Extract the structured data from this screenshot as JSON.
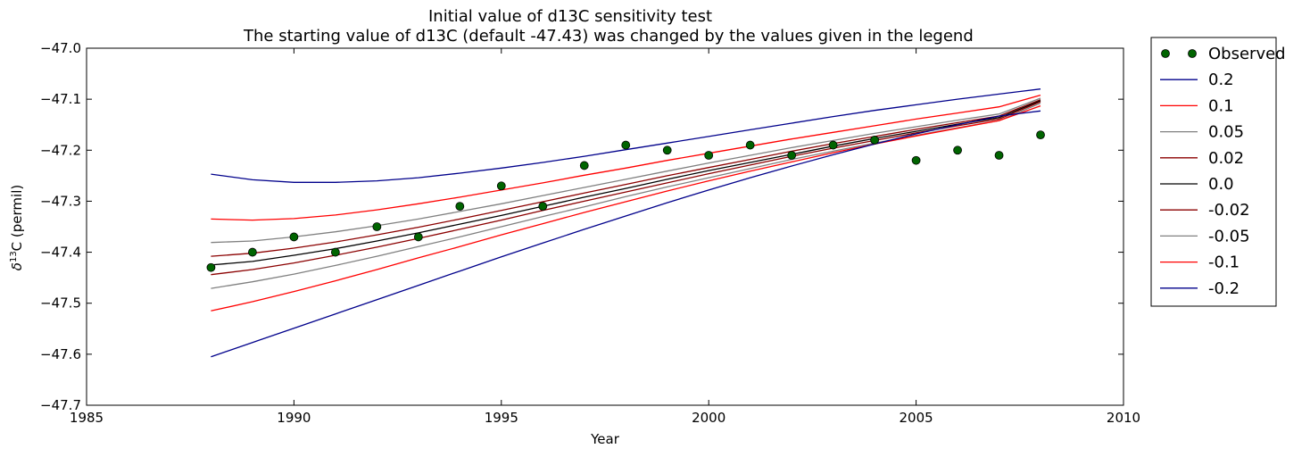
{
  "chart_data": {
    "type": "line",
    "title": "Initial value of d13C sensitivity test",
    "subtitle": "The starting value of d13C (default -47.43) was changed by the values given in the legend",
    "xlabel": "Year",
    "ylabel": "δ13C (permil)",
    "ylabel_parts": {
      "delta": "δ",
      "sup": "13",
      "rest": "C (permil)"
    },
    "xlim": [
      1985,
      2010
    ],
    "ylim": [
      -47.7,
      -47.0
    ],
    "xticks": [
      1985,
      1990,
      1995,
      2000,
      2005,
      2010
    ],
    "xtick_labels": [
      "1985",
      "1990",
      "1995",
      "2000",
      "2005",
      "2010"
    ],
    "yticks": [
      -47.0,
      -47.1,
      -47.2,
      -47.3,
      -47.4,
      -47.5,
      -47.6,
      -47.7
    ],
    "ytick_labels": [
      "−47.0",
      "−47.1",
      "−47.2",
      "−47.3",
      "−47.4",
      "−47.5",
      "−47.6",
      "−47.7"
    ],
    "grid": false,
    "legend_position": "outside-right",
    "x": [
      1988,
      1989,
      1990,
      1991,
      1992,
      1993,
      1994,
      1995,
      1996,
      1997,
      1998,
      1999,
      2000,
      2001,
      2002,
      2003,
      2004,
      2005,
      2006,
      2007,
      2008
    ],
    "observed": {
      "name": "Observed",
      "color": "#006400",
      "values": [
        -47.43,
        -47.4,
        -47.37,
        -47.4,
        -47.35,
        -47.37,
        -47.31,
        -47.27,
        -47.31,
        -47.23,
        -47.19,
        -47.2,
        -47.21,
        -47.19,
        -47.21,
        -47.19,
        -47.18,
        -47.22,
        -47.2,
        -47.21,
        -47.17
      ]
    },
    "series": [
      {
        "name": "0.2",
        "color": "#00008b",
        "values": [
          -47.247,
          -47.258,
          -47.263,
          -47.263,
          -47.26,
          -47.254,
          -47.245,
          -47.235,
          -47.224,
          -47.212,
          -47.199,
          -47.186,
          -47.173,
          -47.16,
          -47.147,
          -47.134,
          -47.122,
          -47.111,
          -47.1,
          -47.09,
          -47.08
        ]
      },
      {
        "name": "0.1",
        "color": "#ff0000",
        "values": [
          -47.335,
          -47.337,
          -47.334,
          -47.327,
          -47.317,
          -47.305,
          -47.292,
          -47.278,
          -47.264,
          -47.249,
          -47.235,
          -47.22,
          -47.206,
          -47.192,
          -47.178,
          -47.165,
          -47.152,
          -47.139,
          -47.127,
          -47.115,
          -47.092
        ]
      },
      {
        "name": "0.05",
        "color": "#808080",
        "values": [
          -47.381,
          -47.378,
          -47.37,
          -47.36,
          -47.348,
          -47.335,
          -47.32,
          -47.305,
          -47.289,
          -47.273,
          -47.257,
          -47.241,
          -47.225,
          -47.21,
          -47.195,
          -47.181,
          -47.167,
          -47.154,
          -47.141,
          -47.129,
          -47.098
        ]
      },
      {
        "name": "0.02",
        "color": "#8b0000",
        "values": [
          -47.408,
          -47.402,
          -47.392,
          -47.38,
          -47.366,
          -47.351,
          -47.335,
          -47.318,
          -47.301,
          -47.284,
          -47.267,
          -47.25,
          -47.234,
          -47.218,
          -47.202,
          -47.187,
          -47.173,
          -47.159,
          -47.146,
          -47.133,
          -47.101
        ]
      },
      {
        "name": "0.0",
        "color": "#000000",
        "values": [
          -47.425,
          -47.418,
          -47.406,
          -47.393,
          -47.378,
          -47.362,
          -47.345,
          -47.328,
          -47.31,
          -47.292,
          -47.275,
          -47.257,
          -47.24,
          -47.224,
          -47.208,
          -47.192,
          -47.177,
          -47.163,
          -47.149,
          -47.136,
          -47.103
        ]
      },
      {
        "name": "-0.02",
        "color": "#8b0000",
        "values": [
          -47.444,
          -47.434,
          -47.421,
          -47.406,
          -47.39,
          -47.373,
          -47.355,
          -47.337,
          -47.318,
          -47.3,
          -47.282,
          -47.264,
          -47.246,
          -47.229,
          -47.212,
          -47.196,
          -47.181,
          -47.166,
          -47.152,
          -47.139,
          -47.105
        ]
      },
      {
        "name": "-0.05",
        "color": "#808080",
        "values": [
          -47.471,
          -47.458,
          -47.443,
          -47.426,
          -47.408,
          -47.389,
          -47.37,
          -47.35,
          -47.33,
          -47.311,
          -47.291,
          -47.272,
          -47.254,
          -47.236,
          -47.218,
          -47.202,
          -47.186,
          -47.171,
          -47.156,
          -47.142,
          -47.108
        ]
      },
      {
        "name": "-0.1",
        "color": "#ff0000",
        "values": [
          -47.515,
          -47.497,
          -47.477,
          -47.456,
          -47.434,
          -47.411,
          -47.389,
          -47.366,
          -47.344,
          -47.322,
          -47.301,
          -47.28,
          -47.26,
          -47.241,
          -47.223,
          -47.205,
          -47.188,
          -47.172,
          -47.157,
          -47.142,
          -47.113
        ]
      },
      {
        "name": "-0.2",
        "color": "#00008b",
        "values": [
          -47.605,
          -47.577,
          -47.549,
          -47.521,
          -47.493,
          -47.465,
          -47.437,
          -47.409,
          -47.382,
          -47.355,
          -47.329,
          -47.303,
          -47.278,
          -47.254,
          -47.231,
          -47.209,
          -47.188,
          -47.168,
          -47.15,
          -47.133,
          -47.123
        ]
      }
    ]
  }
}
